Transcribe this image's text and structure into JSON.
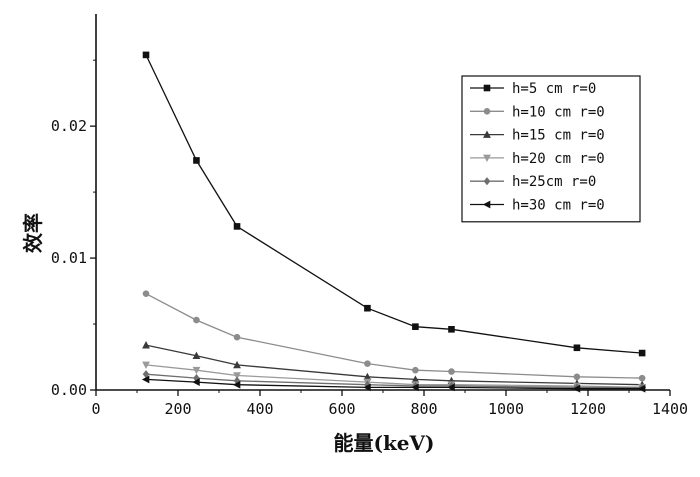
{
  "chart_data": {
    "type": "line",
    "title": "",
    "xlabel": "能量(keV)",
    "ylabel": "效率",
    "xlim": [
      0,
      1400
    ],
    "ylim": [
      0,
      0.0285
    ],
    "xticks": [
      0,
      200,
      400,
      600,
      800,
      1000,
      1200,
      1400
    ],
    "xtick_labels": [
      "0",
      "200",
      "400",
      "600",
      "800",
      "1000",
      "1200",
      "1400"
    ],
    "yticks": [
      0,
      0.01,
      0.02
    ],
    "ytick_labels": [
      "0.00",
      "0.01",
      "0.02"
    ],
    "grid": false,
    "legend_position": "top-right",
    "x": [
      122,
      245,
      344,
      662,
      779,
      867,
      1173,
      1332
    ],
    "series": [
      {
        "name": "h=5 cm r=0",
        "color": "#111111",
        "marker": "square",
        "values": [
          0.0254,
          0.0174,
          0.0124,
          0.0062,
          0.0048,
          0.0046,
          0.0032,
          0.0028
        ]
      },
      {
        "name": "h=10 cm r=0",
        "color": "#8c8c8c",
        "marker": "circle",
        "values": [
          0.0073,
          0.0053,
          0.004,
          0.002,
          0.0015,
          0.0014,
          0.001,
          0.0009
        ]
      },
      {
        "name": "h=15 cm r=0",
        "color": "#3a3a3a",
        "marker": "triangle-up",
        "values": [
          0.0034,
          0.0026,
          0.0019,
          0.001,
          0.0008,
          0.0007,
          0.0005,
          0.0004
        ]
      },
      {
        "name": "h=20 cm r=0",
        "color": "#9a9a9a",
        "marker": "triangle-down",
        "values": [
          0.0019,
          0.0015,
          0.0011,
          0.0006,
          0.0004,
          0.0004,
          0.0003,
          0.0002
        ]
      },
      {
        "name": "h=25cm r=0",
        "color": "#6e6e6e",
        "marker": "diamond",
        "values": [
          0.0012,
          0.0009,
          0.0007,
          0.0004,
          0.0003,
          0.0003,
          0.0002,
          0.0002
        ]
      },
      {
        "name": "h=30 cm r=0",
        "color": "#111111",
        "marker": "triangle-left",
        "values": [
          0.0008,
          0.0006,
          0.0004,
          0.0002,
          0.0002,
          0.0002,
          0.0001,
          0.0001
        ]
      }
    ]
  }
}
